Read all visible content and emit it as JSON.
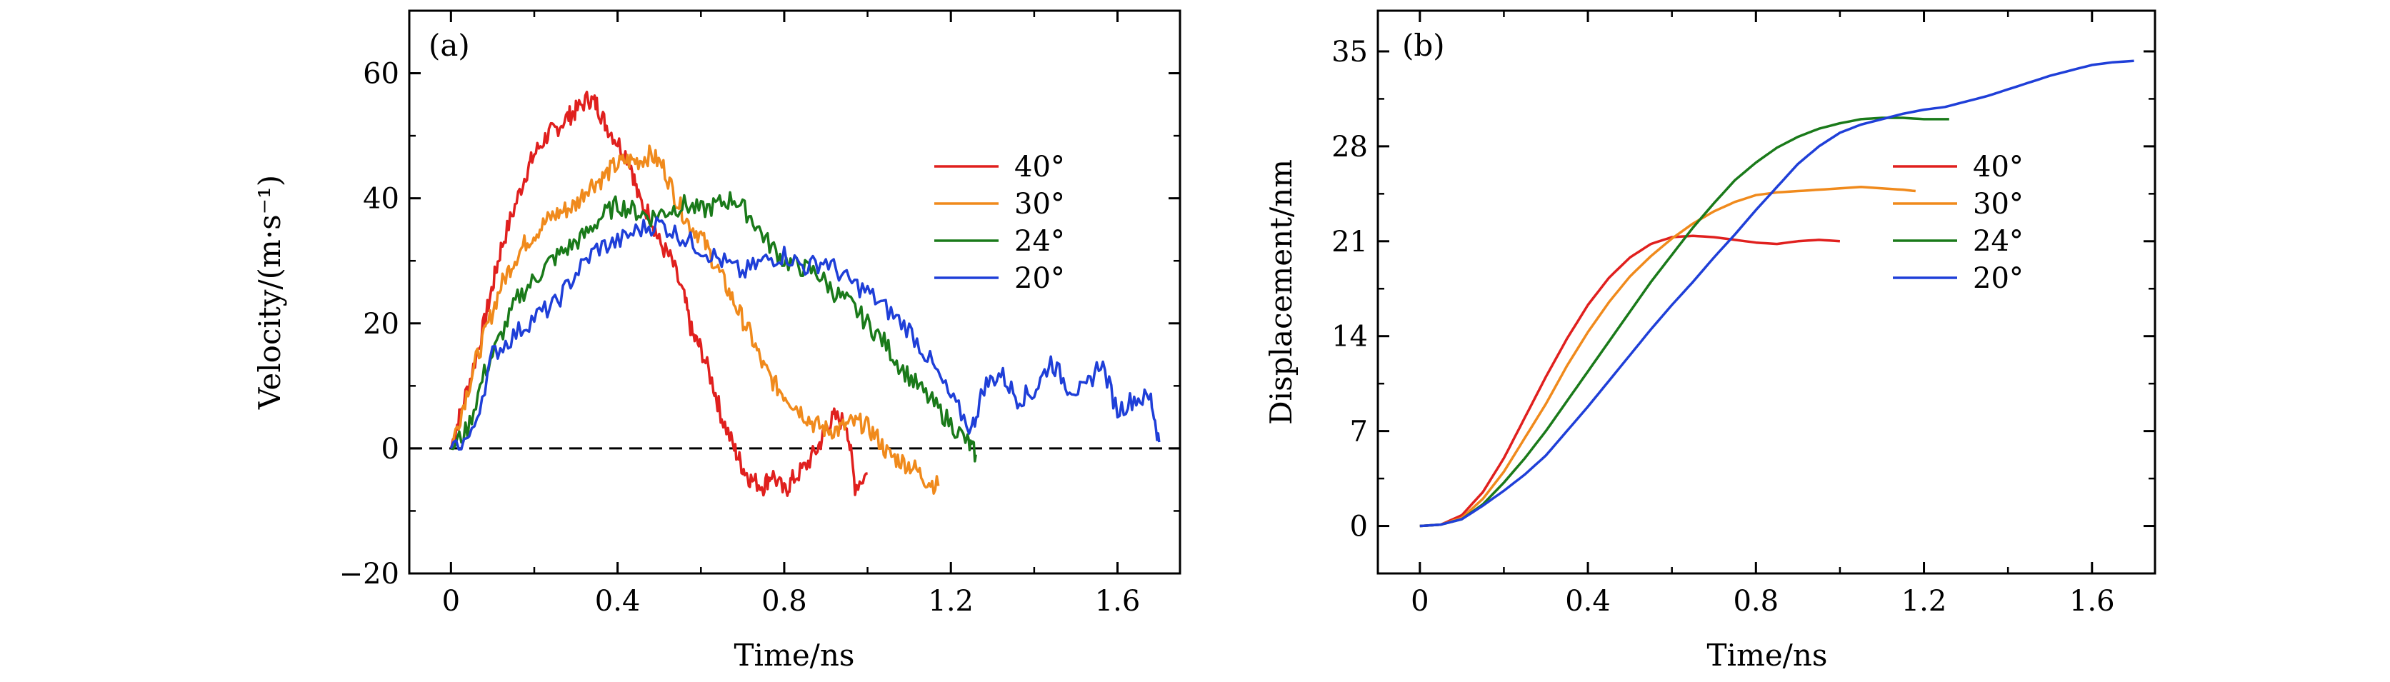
{
  "chart_data": [
    {
      "panel": "(a)",
      "type": "line",
      "xlabel": "Time/ns",
      "ylabel": "Velocity/(m·s⁻¹)",
      "xlim": [
        -0.1,
        1.75
      ],
      "ylim": [
        -20,
        70
      ],
      "xticks": [
        "0",
        "0.4",
        "0.8",
        "1.2",
        "1.6"
      ],
      "xtick_values": [
        0,
        0.4,
        0.8,
        1.2,
        1.6
      ],
      "yticks": [
        "−20",
        "0",
        "20",
        "40",
        "60"
      ],
      "ytick_values": [
        -20,
        0,
        20,
        40,
        60
      ],
      "reference_line": {
        "y": 0,
        "style": "dashed"
      },
      "legend_position": "right",
      "series": [
        {
          "name": "40°",
          "color": "#e0201e",
          "x": [
            0.0,
            0.02,
            0.05,
            0.08,
            0.1,
            0.12,
            0.15,
            0.18,
            0.2,
            0.23,
            0.25,
            0.28,
            0.3,
            0.33,
            0.35,
            0.37,
            0.4,
            0.43,
            0.45,
            0.48,
            0.5,
            0.53,
            0.56,
            0.58,
            0.6,
            0.63,
            0.65,
            0.68,
            0.7,
            0.72,
            0.75,
            0.77,
            0.8,
            0.82,
            0.85,
            0.88,
            0.9,
            0.92,
            0.95,
            0.97,
            1.0
          ],
          "y": [
            0,
            5,
            12,
            20,
            26,
            32,
            38,
            44,
            47,
            50,
            51,
            53,
            54,
            56,
            55,
            52,
            49,
            46,
            40,
            37,
            33,
            30,
            24,
            18,
            16,
            10,
            5,
            0,
            -3,
            -5,
            -6,
            -4,
            -7,
            -5,
            -3,
            0,
            3,
            5,
            4,
            -6,
            -4
          ]
        },
        {
          "name": "30°",
          "color": "#f08a1c",
          "x": [
            0.0,
            0.03,
            0.06,
            0.09,
            0.12,
            0.15,
            0.18,
            0.21,
            0.24,
            0.27,
            0.3,
            0.33,
            0.36,
            0.39,
            0.42,
            0.45,
            0.48,
            0.51,
            0.54,
            0.57,
            0.6,
            0.63,
            0.66,
            0.69,
            0.72,
            0.75,
            0.78,
            0.81,
            0.84,
            0.87,
            0.9,
            0.93,
            0.96,
            0.99,
            1.02,
            1.05,
            1.08,
            1.11,
            1.14,
            1.17
          ],
          "y": [
            0,
            7,
            14,
            20,
            26,
            30,
            33,
            35,
            37,
            38,
            39,
            42,
            43,
            45,
            46,
            46,
            47,
            45,
            40,
            36,
            34,
            30,
            26,
            22,
            18,
            13,
            10,
            8,
            6,
            4,
            3,
            3,
            4,
            4,
            2,
            -1,
            -2,
            -3,
            -5,
            -6
          ]
        },
        {
          "name": "24°",
          "color": "#1a7a1a",
          "x": [
            0.0,
            0.04,
            0.08,
            0.12,
            0.16,
            0.2,
            0.24,
            0.28,
            0.32,
            0.36,
            0.4,
            0.44,
            0.48,
            0.52,
            0.56,
            0.6,
            0.64,
            0.68,
            0.72,
            0.76,
            0.8,
            0.84,
            0.88,
            0.92,
            0.96,
            1.0,
            1.04,
            1.08,
            1.12,
            1.16,
            1.2,
            1.24,
            1.26
          ],
          "y": [
            0,
            3,
            12,
            18,
            24,
            27,
            30,
            32,
            34,
            37,
            39,
            38,
            37,
            38,
            39,
            38,
            39,
            40,
            37,
            33,
            30,
            29,
            28,
            25,
            23,
            20,
            17,
            13,
            10,
            7,
            4,
            1,
            -1
          ]
        },
        {
          "name": "20°",
          "color": "#1f3fd8",
          "x": [
            0.0,
            0.05,
            0.1,
            0.15,
            0.2,
            0.25,
            0.3,
            0.35,
            0.4,
            0.45,
            0.5,
            0.55,
            0.6,
            0.65,
            0.7,
            0.75,
            0.8,
            0.85,
            0.9,
            0.95,
            1.0,
            1.05,
            1.1,
            1.15,
            1.2,
            1.25,
            1.28,
            1.32,
            1.36,
            1.4,
            1.44,
            1.48,
            1.52,
            1.56,
            1.6,
            1.64,
            1.68,
            1.7
          ],
          "y": [
            0,
            2,
            15,
            18,
            21,
            23,
            28,
            32,
            33,
            35,
            36,
            34,
            32,
            30,
            28,
            30,
            31,
            29,
            30,
            27,
            25,
            22,
            19,
            14,
            8,
            3,
            10,
            12,
            8,
            9,
            14,
            10,
            9,
            14,
            6,
            8,
            8,
            1
          ]
        }
      ]
    },
    {
      "panel": "(b)",
      "type": "line",
      "xlabel": "Time/ns",
      "ylabel": "Displacement/nm",
      "xlim": [
        -0.1,
        1.75
      ],
      "ylim": [
        -3.5,
        38
      ],
      "xticks": [
        "0",
        "0.4",
        "0.8",
        "1.2",
        "1.6"
      ],
      "xtick_values": [
        0,
        0.4,
        0.8,
        1.2,
        1.6
      ],
      "yticks": [
        "0",
        "7",
        "14",
        "21",
        "28",
        "35"
      ],
      "ytick_values": [
        0,
        7,
        14,
        21,
        28,
        35
      ],
      "legend_position": "right",
      "series": [
        {
          "name": "40°",
          "color": "#e0201e",
          "x": [
            0,
            0.05,
            0.1,
            0.15,
            0.2,
            0.25,
            0.3,
            0.35,
            0.4,
            0.45,
            0.5,
            0.55,
            0.6,
            0.65,
            0.7,
            0.75,
            0.8,
            0.85,
            0.9,
            0.95,
            1.0
          ],
          "y": [
            0,
            0.1,
            0.8,
            2.5,
            5.0,
            8.0,
            11.0,
            13.8,
            16.3,
            18.3,
            19.8,
            20.8,
            21.3,
            21.4,
            21.3,
            21.1,
            20.9,
            20.8,
            21.0,
            21.1,
            21.0
          ]
        },
        {
          "name": "30°",
          "color": "#f08a1c",
          "x": [
            0,
            0.05,
            0.1,
            0.15,
            0.2,
            0.25,
            0.3,
            0.35,
            0.4,
            0.45,
            0.5,
            0.55,
            0.6,
            0.65,
            0.7,
            0.75,
            0.8,
            0.85,
            0.9,
            0.95,
            1.0,
            1.05,
            1.1,
            1.15,
            1.18
          ],
          "y": [
            0,
            0.1,
            0.6,
            2.0,
            4.0,
            6.5,
            9.0,
            11.8,
            14.3,
            16.5,
            18.4,
            19.9,
            21.2,
            22.3,
            23.2,
            23.9,
            24.4,
            24.6,
            24.7,
            24.8,
            24.9,
            25.0,
            24.9,
            24.8,
            24.7
          ]
        },
        {
          "name": "24°",
          "color": "#1a7a1a",
          "x": [
            0,
            0.05,
            0.1,
            0.15,
            0.2,
            0.25,
            0.3,
            0.35,
            0.4,
            0.45,
            0.5,
            0.55,
            0.6,
            0.65,
            0.7,
            0.75,
            0.8,
            0.85,
            0.9,
            0.95,
            1.0,
            1.05,
            1.1,
            1.15,
            1.2,
            1.26
          ],
          "y": [
            0,
            0.1,
            0.5,
            1.6,
            3.2,
            5.0,
            7.0,
            9.2,
            11.4,
            13.6,
            15.8,
            18.0,
            20.0,
            22.0,
            23.8,
            25.5,
            26.8,
            27.9,
            28.7,
            29.3,
            29.7,
            30.0,
            30.1,
            30.1,
            30.0,
            30.0
          ]
        },
        {
          "name": "20°",
          "color": "#1f3fd8",
          "x": [
            0,
            0.05,
            0.1,
            0.15,
            0.2,
            0.25,
            0.3,
            0.35,
            0.4,
            0.45,
            0.5,
            0.55,
            0.6,
            0.65,
            0.7,
            0.75,
            0.8,
            0.85,
            0.9,
            0.95,
            1.0,
            1.05,
            1.1,
            1.15,
            1.2,
            1.25,
            1.3,
            1.35,
            1.4,
            1.45,
            1.5,
            1.55,
            1.6,
            1.65,
            1.7
          ],
          "y": [
            0,
            0.1,
            0.5,
            1.5,
            2.6,
            3.8,
            5.2,
            7.0,
            8.8,
            10.7,
            12.6,
            14.5,
            16.3,
            18.0,
            19.8,
            21.5,
            23.3,
            25.0,
            26.7,
            28.0,
            29.0,
            29.6,
            30.0,
            30.4,
            30.7,
            30.9,
            31.3,
            31.7,
            32.2,
            32.7,
            33.2,
            33.6,
            34.0,
            34.2,
            34.3
          ]
        }
      ]
    }
  ]
}
